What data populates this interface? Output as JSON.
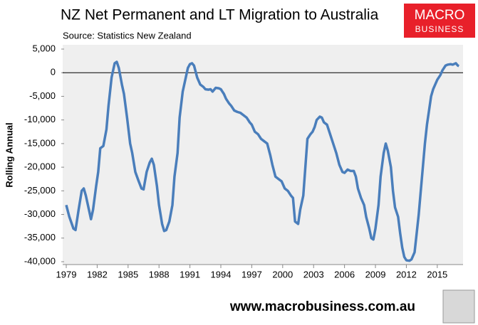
{
  "chart_data": {
    "type": "line",
    "title": "NZ Net Permanent and LT Migration to Australia",
    "subtitle": "Source: Statistics New Zealand",
    "y_label": "Rolling Annual",
    "logo_top": "MACRO",
    "logo_bottom": "BUSINESS",
    "footer": "www.macrobusiness.com.au",
    "x": [
      1979.0,
      1979.3,
      1979.7,
      1979.9,
      1980.2,
      1980.5,
      1980.7,
      1980.9,
      1981.2,
      1981.4,
      1981.6,
      1981.9,
      1982.1,
      1982.3,
      1982.6,
      1982.9,
      1983.1,
      1983.4,
      1983.7,
      1983.9,
      1984.1,
      1984.4,
      1984.6,
      1984.9,
      1985.2,
      1985.4,
      1985.7,
      1986.0,
      1986.3,
      1986.5,
      1986.8,
      1987.1,
      1987.3,
      1987.5,
      1987.8,
      1988.0,
      1988.3,
      1988.5,
      1988.7,
      1989.0,
      1989.3,
      1989.5,
      1989.8,
      1990.0,
      1990.3,
      1990.6,
      1990.8,
      1991.0,
      1991.2,
      1991.4,
      1991.7,
      1992.0,
      1992.3,
      1992.5,
      1992.8,
      1993.0,
      1993.2,
      1993.5,
      1993.8,
      1994.0,
      1994.3,
      1994.5,
      1994.8,
      1995.0,
      1995.3,
      1995.6,
      1995.9,
      1996.2,
      1996.5,
      1996.8,
      1997.0,
      1997.3,
      1997.6,
      1997.9,
      1998.2,
      1998.5,
      1998.8,
      1999.0,
      1999.3,
      1999.6,
      1999.9,
      2000.2,
      2000.5,
      2000.8,
      2001.0,
      2001.2,
      2001.5,
      2001.7,
      2002.0,
      2002.2,
      2002.4,
      2002.7,
      2002.9,
      2003.1,
      2003.3,
      2003.6,
      2003.8,
      2004.0,
      2004.3,
      2004.6,
      2004.9,
      2005.2,
      2005.5,
      2005.8,
      2006.0,
      2006.3,
      2006.6,
      2006.9,
      2007.1,
      2007.3,
      2007.6,
      2007.9,
      2008.1,
      2008.4,
      2008.6,
      2008.8,
      2009.0,
      2009.3,
      2009.5,
      2009.8,
      2010.0,
      2010.2,
      2010.5,
      2010.7,
      2010.9,
      2011.2,
      2011.4,
      2011.6,
      2011.8,
      2012.0,
      2012.3,
      2012.5,
      2012.8,
      2013.0,
      2013.2,
      2013.4,
      2013.6,
      2013.8,
      2014.0,
      2014.2,
      2014.4,
      2014.6,
      2014.8,
      2015.0,
      2015.3,
      2015.5,
      2015.8,
      2016.0,
      2016.3,
      2016.5,
      2016.8,
      2017.0,
      2017.1
    ],
    "series": [
      {
        "color": "#4a7ebb",
        "values": [
          -28000,
          -30500,
          -33000,
          -33300,
          -29000,
          -25000,
          -24500,
          -26000,
          -29000,
          -31000,
          -29000,
          -24000,
          -21000,
          -16000,
          -15500,
          -12000,
          -7000,
          -1000,
          2000,
          2300,
          1000,
          -2500,
          -4500,
          -9500,
          -15000,
          -17000,
          -21000,
          -22800,
          -24500,
          -24700,
          -21000,
          -19000,
          -18200,
          -19500,
          -24000,
          -28000,
          -32000,
          -33500,
          -33300,
          -31500,
          -28000,
          -22000,
          -17000,
          -9500,
          -4000,
          -1000,
          1000,
          1800,
          2000,
          1500,
          -1000,
          -2500,
          -3000,
          -3500,
          -3600,
          -3500,
          -4000,
          -3200,
          -3300,
          -3500,
          -4500,
          -5500,
          -6500,
          -7000,
          -8000,
          -8300,
          -8500,
          -9000,
          -9500,
          -10500,
          -11000,
          -12500,
          -13000,
          -14000,
          -14500,
          -15000,
          -17500,
          -19500,
          -22000,
          -22500,
          -23000,
          -24500,
          -25000,
          -26000,
          -26500,
          -31500,
          -32000,
          -29000,
          -26000,
          -20000,
          -14000,
          -13000,
          -12500,
          -11500,
          -10000,
          -9300,
          -9500,
          -10500,
          -11000,
          -13000,
          -15000,
          -17000,
          -19500,
          -21000,
          -21200,
          -20500,
          -20800,
          -20800,
          -22000,
          -24500,
          -26500,
          -28000,
          -30500,
          -33000,
          -35000,
          -35300,
          -33000,
          -28000,
          -22000,
          -17000,
          -15000,
          -16500,
          -20000,
          -25000,
          -28500,
          -30500,
          -34000,
          -37000,
          -39000,
          -39700,
          -39800,
          -39500,
          -38000,
          -34000,
          -30000,
          -25000,
          -20000,
          -15000,
          -11000,
          -8000,
          -5000,
          -3500,
          -2500,
          -1500,
          -500,
          500,
          1500,
          1700,
          1800,
          1700,
          2000,
          1500,
          1400
        ]
      }
    ],
    "xlim": [
      1979,
      2017.5
    ],
    "xticks": [
      1979,
      1982,
      1985,
      1988,
      1991,
      1994,
      1997,
      2000,
      2003,
      2006,
      2009,
      2012,
      2015
    ],
    "ylim": [
      -40000,
      5000
    ],
    "yticks": [
      {
        "value": 5000,
        "label": "5,000"
      },
      0,
      {
        "value": -5000,
        "label": "-5,000"
      },
      {
        "value": -10000,
        "label": "-10,000"
      },
      {
        "value": -15000,
        "label": "-15,000"
      },
      {
        "value": -20000,
        "label": "-20,000"
      },
      {
        "value": -25000,
        "label": "-25,000"
      },
      {
        "value": -30000,
        "label": "-30,000"
      },
      {
        "value": -35000,
        "label": "-35,000"
      },
      {
        "value": -40000,
        "label": "-40,000"
      }
    ],
    "grid": false
  }
}
